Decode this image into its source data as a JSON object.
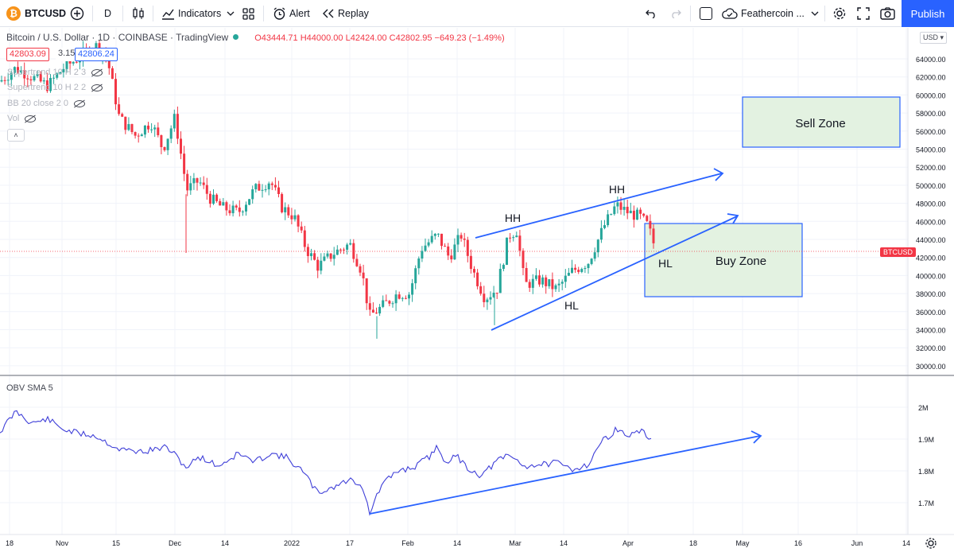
{
  "toolbar": {
    "symbol": "BTCUSD",
    "interval": "D",
    "indicators_label": "Indicators",
    "alert_label": "Alert",
    "replay_label": "Replay",
    "layout_name": "Feathercoin ...",
    "publish_label": "Publish"
  },
  "legend": {
    "title": "Bitcoin / U.S. Dollar · 1D · COINBASE · TradingView",
    "open": "O43444.71",
    "high": "H44000.00",
    "low": "L42424.00",
    "close": "C42802.95",
    "change": "−649.23 (−1.49%)",
    "bid": "42803.09",
    "spread": "3.15",
    "ask": "42806.24",
    "indicators": [
      "Supertrend 10 H 2 3",
      "Supertrend 10 H 2 2",
      "BB 20 close 2 0",
      "Vol"
    ],
    "collapse_glyph": "˄"
  },
  "price_axis": {
    "currency_button": "USD ▾",
    "labels": [
      "64000.00",
      "62000.00",
      "60000.00",
      "58000.00",
      "56000.00",
      "54000.00",
      "52000.00",
      "50000.00",
      "48000.00",
      "46000.00",
      "44000.00",
      "42000.00",
      "40000.00",
      "38000.00",
      "36000.00",
      "34000.00",
      "32000.00",
      "30000.00"
    ],
    "symbol_tag": "BTCUSD"
  },
  "obv": {
    "label": "OBV SMA 5",
    "axis_labels": [
      "2M",
      "1.9M",
      "1.8M",
      "1.7M"
    ]
  },
  "time_axis": {
    "labels": [
      "18",
      "Nov",
      "15",
      "Dec",
      "14",
      "2022",
      "17",
      "Feb",
      "14",
      "Mar",
      "14",
      "Apr",
      "18",
      "May",
      "16",
      "Jun",
      "14"
    ]
  },
  "annotations": {
    "hh1": "HH",
    "hh2": "HH",
    "hl1": "HL",
    "hl2": "HL",
    "sell_zone": "Sell Zone",
    "buy_zone": "Buy Zone"
  },
  "colors": {
    "up": "#26a69a",
    "down": "#f23645",
    "trendline": "#2962ff",
    "zone_fill": "#e3f2e1",
    "obv_line": "#3f3fd8"
  }
}
